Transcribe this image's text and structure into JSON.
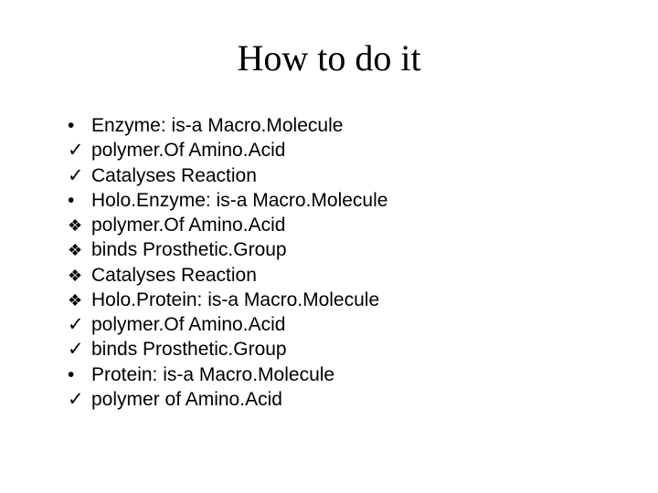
{
  "slide": {
    "title": "How to do it",
    "title_fontsize": 40,
    "title_fontfamily": "Times New Roman",
    "title_color": "#000000",
    "background_color": "#ffffff",
    "body_fontsize": 21,
    "body_fontfamily": "Arial",
    "body_color": "#000000",
    "items": [
      {
        "bullet": "dot",
        "text": "Enzyme: is-a Macro.Molecule"
      },
      {
        "bullet": "check",
        "text": "polymer.Of Amino.Acid"
      },
      {
        "bullet": "check",
        "text": "Catalyses Reaction"
      },
      {
        "bullet": "dot",
        "text": "Holo.Enzyme: is-a Macro.Molecule"
      },
      {
        "bullet": "diamond",
        "text": "polymer.Of Amino.Acid"
      },
      {
        "bullet": "diamond",
        "text": "binds Prosthetic.Group"
      },
      {
        "bullet": "diamond",
        "text": "Catalyses Reaction"
      },
      {
        "bullet": "diamond",
        "text": "Holo.Protein: is-a Macro.Molecule"
      },
      {
        "bullet": "check",
        "text": "polymer.Of Amino.Acid"
      },
      {
        "bullet": "check",
        "text": "binds Prosthetic.Group"
      },
      {
        "bullet": "dot",
        "text": "Protein: is-a Macro.Molecule"
      },
      {
        "bullet": "check",
        "text": "polymer of Amino.Acid"
      }
    ],
    "bullet_glyphs": {
      "dot": "•",
      "check": "✓",
      "diamond": "❖"
    }
  }
}
